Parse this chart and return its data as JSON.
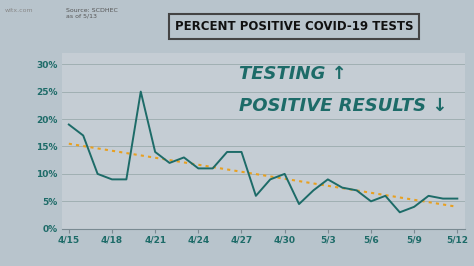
{
  "title": "PERCENT POSITIVE COVID-19 TESTS",
  "source_text": "Source: SCDHEC\nas of 5/13",
  "watermark": "witx.com",
  "annotation_line1": "TESTING ↑",
  "annotation_line2": "POSITIVE RESULTS ↓",
  "x_labels": [
    "4/15",
    "4/18",
    "4/21",
    "4/24",
    "4/27",
    "4/30",
    "5/3",
    "5/6",
    "5/9",
    "5/12"
  ],
  "y_ticks": [
    0,
    5,
    10,
    15,
    20,
    25,
    30
  ],
  "y_tick_labels": [
    "0%",
    "5%",
    "10%",
    "15%",
    "20%",
    "25%",
    "30%"
  ],
  "line_color": "#1d6b68",
  "trend_color": "#e8a020",
  "background_color": "#b8c4cc",
  "plot_bg_color": "#c5cdd4",
  "annotation_color": "#1d6b68",
  "tick_label_color": "#1d6b68",
  "data_x": [
    0,
    1,
    2,
    3,
    4,
    5,
    6,
    7,
    8,
    9,
    10,
    11,
    12,
    13,
    14,
    15,
    16,
    17,
    18,
    19,
    20,
    21,
    22,
    23,
    24,
    25,
    26,
    27
  ],
  "data_y": [
    19,
    17,
    10,
    9,
    9,
    25,
    14,
    12,
    13,
    11,
    11,
    14,
    14,
    6,
    9,
    10,
    4.5,
    7,
    9,
    7.5,
    7,
    5,
    6,
    3,
    4,
    6,
    5.5,
    5.5
  ],
  "trend_start": 15.5,
  "trend_end": 4.0,
  "ylim": [
    0,
    32
  ],
  "xlim": [
    -0.5,
    27.5
  ],
  "title_fontsize": 8.5,
  "annotation_fontsize": 13
}
